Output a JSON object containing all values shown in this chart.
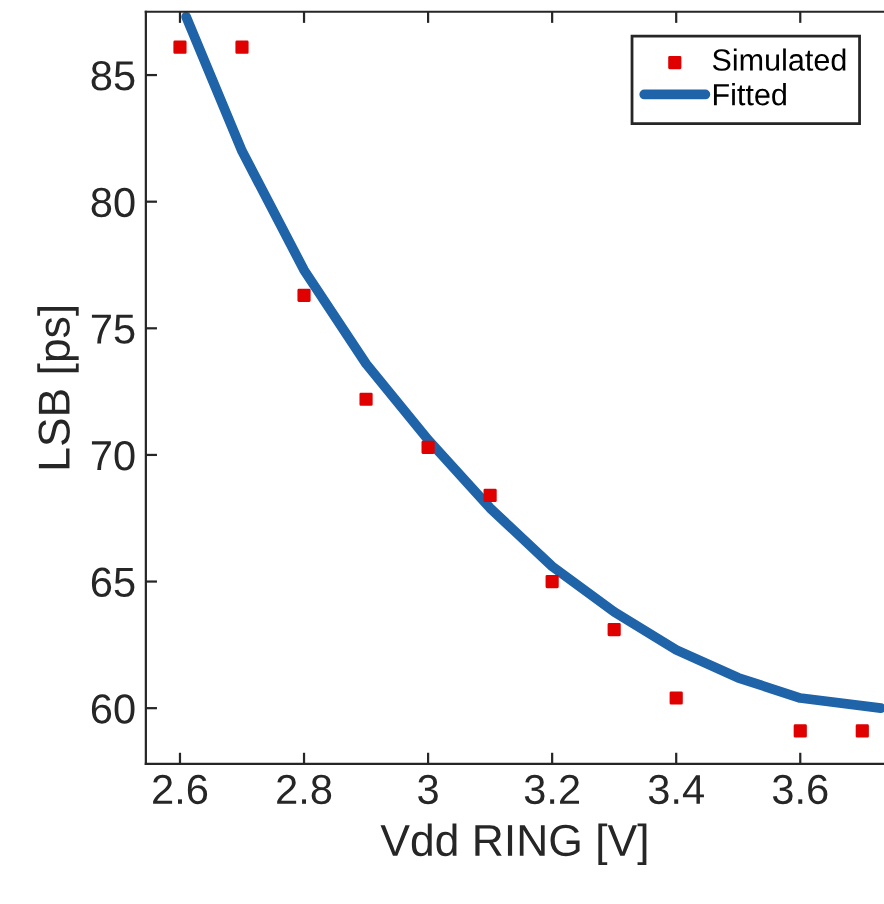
{
  "chart_data": {
    "type": "scatter",
    "xlabel": "Vdd RING [V]",
    "ylabel": "LSB [ps]",
    "xlim": [
      2.545,
      3.735
    ],
    "ylim": [
      57.8,
      87.5
    ],
    "xticks": [
      2.6,
      2.8,
      3,
      3.2,
      3.4,
      3.6
    ],
    "yticks": [
      60,
      65,
      70,
      75,
      80,
      85
    ],
    "grid": false,
    "legend": "top right",
    "series": [
      {
        "name": "Simulated",
        "marker": "square",
        "color": "#e00000",
        "x": [
          2.6,
          2.7,
          2.8,
          2.9,
          3.0,
          3.1,
          3.2,
          3.3,
          3.4,
          3.6,
          3.7
        ],
        "values": [
          86.1,
          86.1,
          76.3,
          72.2,
          70.3,
          68.4,
          65.0,
          63.1,
          60.4,
          59.1,
          59.1
        ]
      },
      {
        "name": "Fitted",
        "type": "line",
        "marker": "none",
        "line_style": "solid",
        "color": "#1f63a8",
        "x": [
          2.61,
          2.7,
          2.8,
          2.9,
          3.0,
          3.1,
          3.2,
          3.3,
          3.4,
          3.5,
          3.6,
          3.73
        ],
        "values": [
          87.3,
          82.0,
          77.3,
          73.6,
          70.6,
          67.9,
          65.6,
          63.8,
          62.3,
          61.2,
          60.4,
          60.0
        ]
      }
    ]
  }
}
